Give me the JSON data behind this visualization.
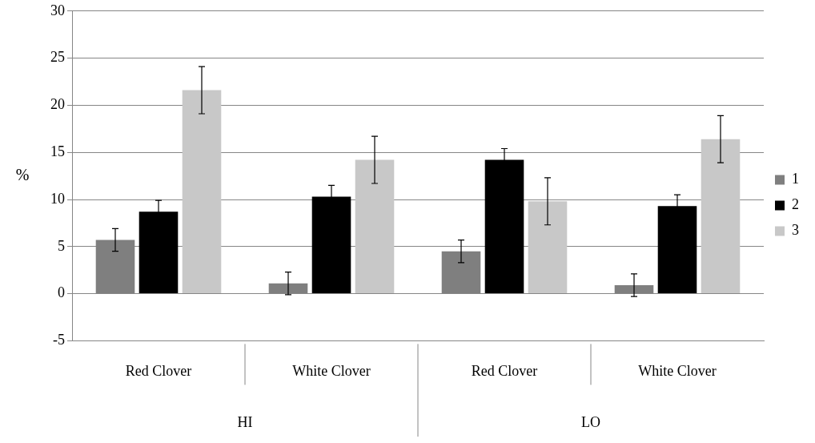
{
  "chart_data": {
    "type": "bar",
    "ylabel": "%",
    "categories": [
      "Red Clover",
      "White Clover",
      "Red Clover",
      "White Clover"
    ],
    "annotations": [
      "HI",
      "LO"
    ],
    "series": [
      {
        "name": "1",
        "color": "#7f7f7f",
        "values": [
          5.7,
          1.1,
          4.5,
          0.9
        ],
        "errors": [
          1.2,
          1.2,
          1.2,
          1.2
        ]
      },
      {
        "name": "2",
        "color": "#000000",
        "values": [
          8.7,
          10.3,
          14.2,
          9.3
        ],
        "errors": [
          1.2,
          1.2,
          1.2,
          1.2
        ]
      },
      {
        "name": "3",
        "color": "#c8c8c8",
        "values": [
          21.6,
          14.2,
          9.8,
          16.4
        ],
        "errors": [
          2.5,
          2.5,
          2.5,
          2.5
        ]
      }
    ],
    "ylim": [
      -5,
      30
    ],
    "yticks": [
      -5,
      0,
      5,
      10,
      15,
      20,
      25,
      30
    ],
    "grid": "y",
    "legend": "right"
  }
}
